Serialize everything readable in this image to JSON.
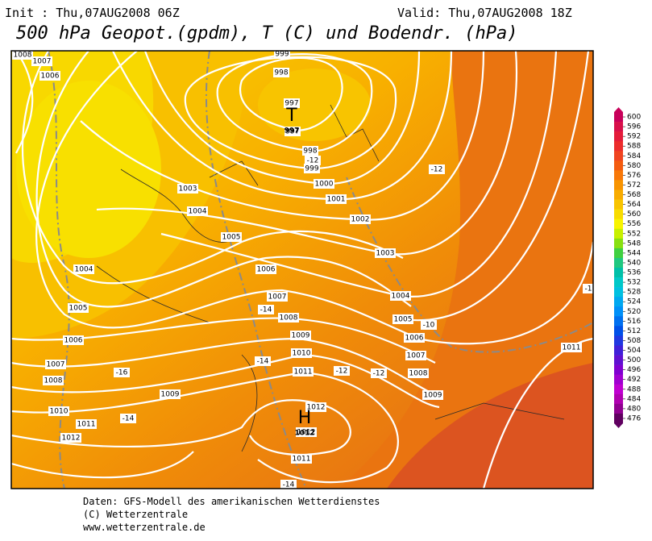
{
  "header": {
    "init": "Init : Thu,07AUG2008 06Z",
    "valid": "Valid: Thu,07AUG2008 18Z",
    "title": "500 hPa Geopot.(gpdm), T (C) und Bodendr. (hPa)"
  },
  "map": {
    "pressure_labels": [
      "1008",
      "1007",
      "1006",
      "999",
      "998",
      "997",
      "997",
      "998",
      "999",
      "1000",
      "1001",
      "1002",
      "1003",
      "1004",
      "1005",
      "1003",
      "1006",
      "1004",
      "1007",
      "1004",
      "1005",
      "1008",
      "1005",
      "1009",
      "1006",
      "1006",
      "1010",
      "1007",
      "1007",
      "1011",
      "1008",
      "1008",
      "1009",
      "1009",
      "1010",
      "1012",
      "1011",
      "1012",
      "1012",
      "1011",
      "1011"
    ],
    "temperature_labels": [
      "-12",
      "-12",
      "-14",
      "-10",
      "-14",
      "-12",
      "-12",
      "-16",
      "-14",
      "-14",
      "-1"
    ],
    "centers": [
      {
        "letter": "T",
        "value": "997"
      },
      {
        "letter": "H",
        "value": "1012"
      }
    ]
  },
  "colorbar": {
    "labels": [
      600,
      596,
      592,
      588,
      584,
      580,
      576,
      572,
      568,
      564,
      560,
      556,
      552,
      548,
      544,
      540,
      536,
      532,
      528,
      524,
      520,
      516,
      512,
      508,
      504,
      500,
      496,
      492,
      488,
      484,
      480,
      476
    ],
    "colors": [
      "#c8005a",
      "#d8104a",
      "#e41c3a",
      "#ec2c2c",
      "#f04420",
      "#f45c10",
      "#f87808",
      "#f89400",
      "#f8ac00",
      "#f8c400",
      "#f8dc00",
      "#f8f400",
      "#c8f000",
      "#88e010",
      "#40d040",
      "#20c880",
      "#00c0a8",
      "#00c8c8",
      "#00c0e0",
      "#00a8f0",
      "#0090f8",
      "#0070f0",
      "#0050e8",
      "#2038e0",
      "#4020d8",
      "#6010d0",
      "#8000d0",
      "#a000d0",
      "#c000d0",
      "#b000b0",
      "#900090",
      "#600060"
    ]
  },
  "footer": {
    "lines": [
      "Daten: GFS-Modell des amerikanischen Wetterdienstes",
      "(C) Wetterzentrale",
      "www.wetterzentrale.de"
    ]
  }
}
